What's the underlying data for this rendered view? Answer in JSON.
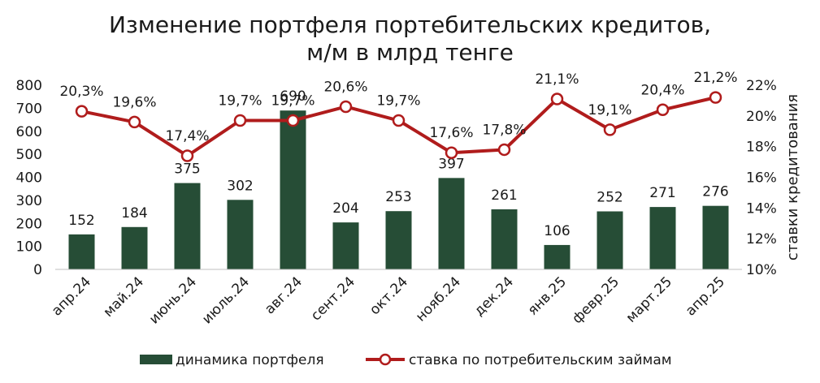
{
  "chart_data": {
    "type": "bar",
    "title_line1": "Изменение портфеля портебительских кредитов,",
    "title_line2": "м/м в млрд тенге",
    "categories": [
      "апр.24",
      "май.24",
      "июнь.24",
      "июль.24",
      "авг.24",
      "сент.24",
      "окт.24",
      "нояб.24",
      "дек.24",
      "янв.25",
      "февр.25",
      "март.25",
      "апр.25"
    ],
    "series": [
      {
        "name": "динамика портфеля",
        "type": "bar",
        "axis": "left",
        "color": "#264d36",
        "values": [
          152,
          184,
          375,
          302,
          690,
          204,
          253,
          397,
          261,
          106,
          252,
          271,
          276
        ],
        "labels": [
          "152",
          "184",
          "375",
          "302",
          "690",
          "204",
          "253",
          "397",
          "261",
          "106",
          "252",
          "271",
          "276"
        ]
      },
      {
        "name": "ставка по потребительским займам",
        "type": "line",
        "axis": "right",
        "color": "#b01c1c",
        "values": [
          20.3,
          19.6,
          17.4,
          19.7,
          19.7,
          20.6,
          19.7,
          17.6,
          17.8,
          21.1,
          19.1,
          20.4,
          21.2
        ],
        "labels": [
          "20,3%",
          "19,6%",
          "17,4%",
          "19,7%",
          "19,7%",
          "20,6%",
          "19,7%",
          "17,6%",
          "17,8%",
          "21,1%",
          "19,1%",
          "20,4%",
          "21,2%"
        ]
      }
    ],
    "y_left": {
      "lim": [
        0,
        800
      ],
      "ticks": [
        0,
        100,
        200,
        300,
        400,
        500,
        600,
        700,
        800
      ],
      "tick_labels": [
        "0",
        "100",
        "200",
        "300",
        "400",
        "500",
        "600",
        "700",
        "800"
      ]
    },
    "y_right": {
      "label": "ставки кредитования",
      "lim": [
        10,
        22
      ],
      "ticks": [
        10,
        12,
        14,
        16,
        18,
        20,
        22
      ],
      "tick_labels": [
        "10%",
        "12%",
        "14%",
        "16%",
        "18%",
        "20%",
        "22%"
      ]
    },
    "grid": false,
    "legend_position": "bottom",
    "legend": [
      {
        "name": "динамика портфеля",
        "kind": "bar",
        "color": "#264d36"
      },
      {
        "name": "ставка по потребительским займам",
        "kind": "line",
        "color": "#b01c1c"
      }
    ]
  }
}
